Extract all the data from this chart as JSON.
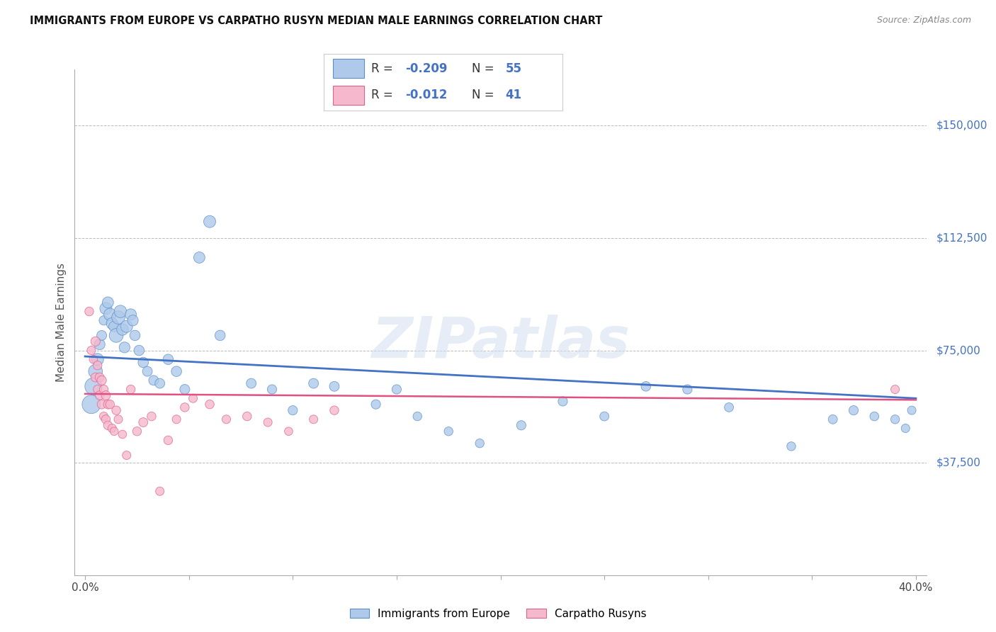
{
  "title": "IMMIGRANTS FROM EUROPE VS CARPATHO RUSYN MEDIAN MALE EARNINGS CORRELATION CHART",
  "source": "Source: ZipAtlas.com",
  "ylabel": "Median Male Earnings",
  "xlim": [
    -0.005,
    0.405
  ],
  "ylim": [
    0,
    168750
  ],
  "ytick_values": [
    0,
    37500,
    75000,
    112500,
    150000
  ],
  "ytick_labels": [
    "",
    "$37,500",
    "$75,000",
    "$112,500",
    "$150,000"
  ],
  "xtick_values": [
    0.0,
    0.05,
    0.1,
    0.15,
    0.2,
    0.25,
    0.3,
    0.35,
    0.4
  ],
  "xtick_labels": [
    "0.0%",
    "",
    "",
    "",
    "",
    "",
    "",
    "",
    "40.0%"
  ],
  "blue_fill": "#aec9ea",
  "blue_edge": "#5b8fc9",
  "pink_fill": "#f5b8cc",
  "pink_edge": "#e06090",
  "blue_line_color": "#4472c4",
  "pink_line_color": "#e05080",
  "legend_label1": "Immigrants from Europe",
  "legend_label2": "Carpatho Rusyns",
  "watermark": "ZIPatlas",
  "blue_scatter_x": [
    0.003,
    0.004,
    0.005,
    0.006,
    0.007,
    0.008,
    0.009,
    0.01,
    0.011,
    0.012,
    0.013,
    0.014,
    0.015,
    0.016,
    0.017,
    0.018,
    0.019,
    0.02,
    0.022,
    0.023,
    0.024,
    0.026,
    0.028,
    0.03,
    0.033,
    0.036,
    0.04,
    0.044,
    0.048,
    0.055,
    0.06,
    0.065,
    0.08,
    0.09,
    0.1,
    0.11,
    0.12,
    0.14,
    0.15,
    0.16,
    0.175,
    0.19,
    0.21,
    0.23,
    0.25,
    0.27,
    0.29,
    0.31,
    0.34,
    0.36,
    0.37,
    0.38,
    0.39,
    0.395,
    0.398
  ],
  "blue_scatter_y": [
    57000,
    63000,
    68000,
    72000,
    77000,
    80000,
    85000,
    89000,
    91000,
    87000,
    84000,
    83000,
    80000,
    86000,
    88000,
    82000,
    76000,
    83000,
    87000,
    85000,
    80000,
    75000,
    71000,
    68000,
    65000,
    64000,
    72000,
    68000,
    62000,
    106000,
    118000,
    80000,
    64000,
    62000,
    55000,
    64000,
    63000,
    57000,
    62000,
    53000,
    48000,
    44000,
    50000,
    58000,
    53000,
    63000,
    62000,
    56000,
    43000,
    52000,
    55000,
    53000,
    52000,
    49000,
    55000
  ],
  "blue_scatter_size": [
    350,
    300,
    200,
    150,
    120,
    100,
    90,
    150,
    130,
    160,
    140,
    120,
    200,
    180,
    160,
    140,
    120,
    150,
    130,
    120,
    110,
    110,
    110,
    100,
    100,
    100,
    110,
    110,
    100,
    130,
    150,
    110,
    100,
    90,
    90,
    100,
    100,
    90,
    90,
    80,
    80,
    80,
    90,
    90,
    85,
    95,
    90,
    85,
    80,
    85,
    90,
    82,
    80,
    75,
    75
  ],
  "pink_scatter_x": [
    0.002,
    0.003,
    0.004,
    0.005,
    0.005,
    0.006,
    0.006,
    0.007,
    0.007,
    0.008,
    0.008,
    0.009,
    0.009,
    0.01,
    0.01,
    0.011,
    0.011,
    0.012,
    0.013,
    0.014,
    0.015,
    0.016,
    0.018,
    0.02,
    0.022,
    0.025,
    0.028,
    0.032,
    0.036,
    0.04,
    0.044,
    0.048,
    0.052,
    0.06,
    0.068,
    0.078,
    0.088,
    0.098,
    0.11,
    0.12,
    0.39
  ],
  "pink_scatter_y": [
    88000,
    75000,
    72000,
    78000,
    66000,
    70000,
    62000,
    66000,
    60000,
    65000,
    57000,
    62000,
    53000,
    60000,
    52000,
    57000,
    50000,
    57000,
    49000,
    48000,
    55000,
    52000,
    47000,
    40000,
    62000,
    48000,
    51000,
    53000,
    28000,
    45000,
    52000,
    56000,
    59000,
    57000,
    52000,
    53000,
    51000,
    48000,
    52000,
    55000,
    62000
  ],
  "pink_scatter_size": [
    80,
    75,
    70,
    90,
    85,
    80,
    75,
    85,
    80,
    90,
    85,
    80,
    75,
    85,
    80,
    85,
    80,
    80,
    75,
    70,
    80,
    75,
    70,
    75,
    80,
    80,
    85,
    80,
    75,
    80,
    75,
    80,
    75,
    80,
    75,
    80,
    75,
    70,
    75,
    80,
    75
  ],
  "blue_trend_x": [
    0.0,
    0.4
  ],
  "blue_trend_y": [
    73000,
    59000
  ],
  "pink_trend_x": [
    0.0,
    0.4
  ],
  "pink_trend_y": [
    60500,
    58500
  ],
  "background_color": "#ffffff",
  "grid_color": "#bbbbbb"
}
